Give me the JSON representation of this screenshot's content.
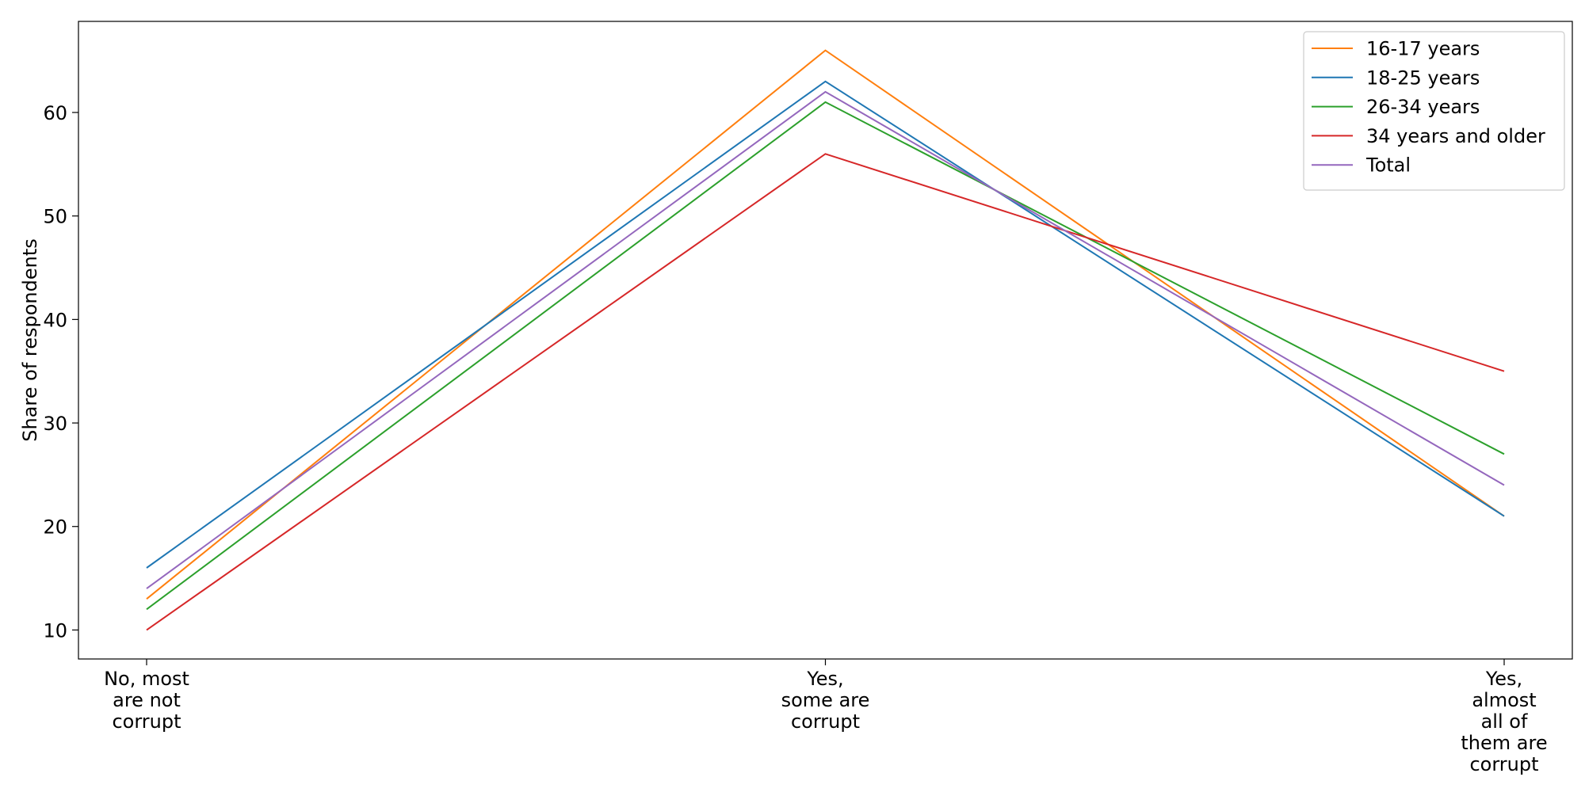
{
  "chart_data": {
    "type": "line",
    "title": "",
    "xlabel": "",
    "ylabel": "Share of respondents",
    "categories": [
      [
        "No, most",
        "are not",
        "corrupt"
      ],
      [
        "Yes,",
        "some are",
        "corrupt"
      ],
      [
        "Yes,",
        "almost",
        "all of",
        "them are",
        "corrupt"
      ]
    ],
    "ylim": [
      7.2,
      68.8
    ],
    "yticks": [
      10,
      20,
      30,
      40,
      50,
      60
    ],
    "grid": false,
    "legend_position": "top-right",
    "series": [
      {
        "name": "16-17 years",
        "color": "#ff7f0e",
        "values": [
          13,
          66,
          21
        ]
      },
      {
        "name": "18-25 years",
        "color": "#1f77b4",
        "values": [
          16,
          63,
          21
        ]
      },
      {
        "name": "26-34 years",
        "color": "#2ca02c",
        "values": [
          12,
          61,
          27
        ]
      },
      {
        "name": "34 years and older",
        "color": "#d62728",
        "values": [
          10,
          56,
          35
        ]
      },
      {
        "name": "Total",
        "color": "#9467bd",
        "values": [
          14,
          62,
          24
        ]
      }
    ]
  }
}
